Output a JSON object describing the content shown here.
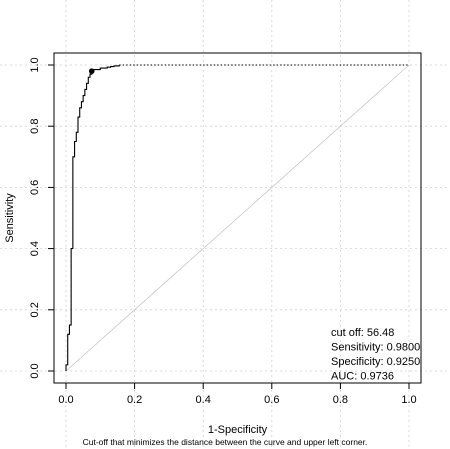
{
  "chart_data": {
    "type": "line",
    "title": "",
    "xlabel": "1-Specificity",
    "ylabel": "Sensitivity",
    "caption": "Cut-off that minimizes the distance between the curve and upper left corner.",
    "xlim": [
      0,
      1
    ],
    "ylim": [
      0,
      1
    ],
    "x_ticks": [
      0.0,
      0.2,
      0.4,
      0.6,
      0.8,
      1.0
    ],
    "y_ticks": [
      0.0,
      0.2,
      0.4,
      0.6,
      0.8,
      1.0
    ],
    "x_tick_labels": [
      "0.0",
      "0.2",
      "0.4",
      "0.6",
      "0.8",
      "1.0"
    ],
    "y_tick_labels": [
      "0.0",
      "0.2",
      "0.4",
      "0.6",
      "0.8",
      "1.0"
    ],
    "grid": true,
    "legend_placement": "bottom-right",
    "stats": [
      {
        "label": "cut off",
        "value": "56.48"
      },
      {
        "label": "Sensitivity",
        "value": "0.9800"
      },
      {
        "label": "Specificity",
        "value": "0.9250"
      },
      {
        "label": "AUC",
        "value": "0.9736"
      }
    ],
    "optimal_point": {
      "x": 0.075,
      "y": 0.98
    },
    "roc_curve": {
      "x": [
        0.0,
        0.0,
        0.005,
        0.005,
        0.01,
        0.01,
        0.015,
        0.015,
        0.02,
        0.02,
        0.025,
        0.025,
        0.03,
        0.03,
        0.035,
        0.035,
        0.04,
        0.04,
        0.045,
        0.045,
        0.05,
        0.05,
        0.055,
        0.055,
        0.06,
        0.06,
        0.065,
        0.065,
        0.07,
        0.07,
        0.075,
        0.075,
        0.08,
        0.08,
        0.09,
        0.09,
        0.1,
        0.1,
        0.11,
        0.11,
        0.12,
        0.12,
        0.13,
        0.13,
        0.14,
        0.14,
        0.155,
        0.155,
        1.0
      ],
      "y": [
        0.0,
        0.02,
        0.02,
        0.12,
        0.12,
        0.15,
        0.15,
        0.4,
        0.4,
        0.7,
        0.7,
        0.75,
        0.75,
        0.78,
        0.78,
        0.83,
        0.83,
        0.86,
        0.86,
        0.88,
        0.88,
        0.9,
        0.9,
        0.92,
        0.92,
        0.94,
        0.94,
        0.96,
        0.96,
        0.97,
        0.97,
        0.98,
        0.98,
        0.985,
        0.985,
        0.985,
        0.985,
        0.99,
        0.99,
        0.99,
        0.99,
        0.993,
        0.993,
        0.995,
        0.995,
        0.997,
        0.997,
        1.0,
        1.0
      ]
    },
    "reference_line": {
      "x": [
        0,
        1
      ],
      "y": [
        0,
        1
      ]
    },
    "colors": {
      "curve": "#000000",
      "grid": "#d3d3d3",
      "reference": "#c8c8c8",
      "point": "#000000"
    }
  }
}
